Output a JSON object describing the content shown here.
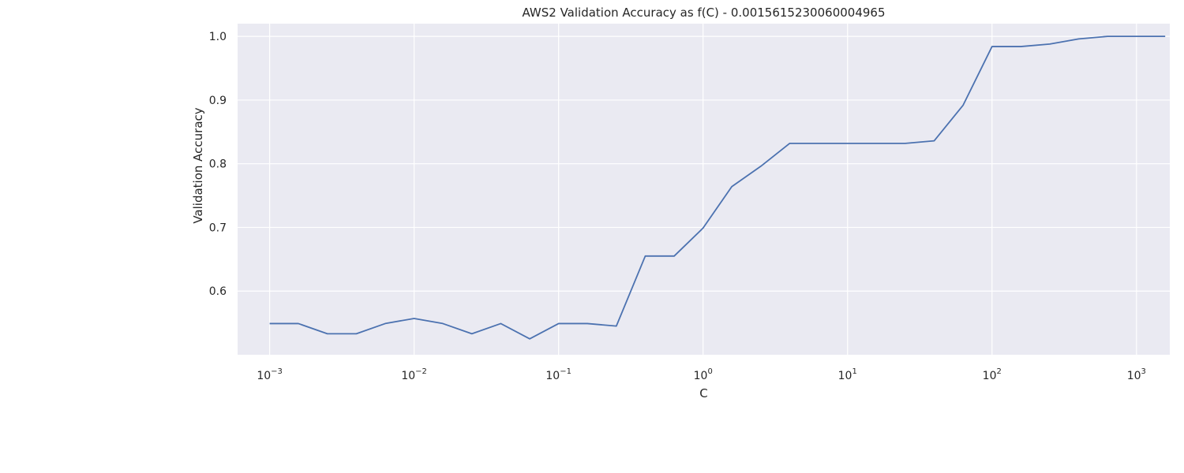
{
  "chart_data": {
    "type": "line",
    "title": "AWS2 Validation Accuracy as f(C) - 0.0015615230060004965",
    "xlabel": "C",
    "ylabel": "Validation Accuracy",
    "xscale": "log",
    "xlim": [
      0.0006,
      1700
    ],
    "ylim": [
      0.5,
      1.02
    ],
    "grid": true,
    "x_ticks": [
      {
        "base": "10",
        "exp": "−3",
        "value": 0.001
      },
      {
        "base": "10",
        "exp": "−2",
        "value": 0.01
      },
      {
        "base": "10",
        "exp": "−1",
        "value": 0.1
      },
      {
        "base": "10",
        "exp": "0",
        "value": 1
      },
      {
        "base": "10",
        "exp": "1",
        "value": 10
      },
      {
        "base": "10",
        "exp": "2",
        "value": 100
      },
      {
        "base": "10",
        "exp": "3",
        "value": 1000
      }
    ],
    "y_ticks": [
      "0.6",
      "0.7",
      "0.8",
      "0.9",
      "1.0"
    ],
    "series": [
      {
        "color": "#4c72b0",
        "points": [
          [
            0.001,
            0.549
          ],
          [
            0.00158,
            0.549
          ],
          [
            0.00251,
            0.533
          ],
          [
            0.00398,
            0.533
          ],
          [
            0.00631,
            0.549
          ],
          [
            0.01,
            0.557
          ],
          [
            0.0158,
            0.549
          ],
          [
            0.0251,
            0.533
          ],
          [
            0.0398,
            0.549
          ],
          [
            0.0631,
            0.525
          ],
          [
            0.1,
            0.549
          ],
          [
            0.158,
            0.549
          ],
          [
            0.251,
            0.545
          ],
          [
            0.398,
            0.655
          ],
          [
            0.631,
            0.655
          ],
          [
            1.0,
            0.699
          ],
          [
            1.58,
            0.764
          ],
          [
            2.51,
            0.796
          ],
          [
            3.98,
            0.832
          ],
          [
            6.31,
            0.832
          ],
          [
            10.0,
            0.832
          ],
          [
            15.8,
            0.832
          ],
          [
            25.1,
            0.832
          ],
          [
            39.8,
            0.836
          ],
          [
            63.1,
            0.892
          ],
          [
            100,
            0.984
          ],
          [
            158,
            0.984
          ],
          [
            251,
            0.988
          ],
          [
            398,
            0.996
          ],
          [
            631,
            1.0
          ],
          [
            1000,
            1.0
          ],
          [
            1580,
            1.0
          ]
        ]
      }
    ],
    "colors": {
      "plot_background": "#eaeaf2",
      "grid": "#ffffff",
      "line": "#4c72b0",
      "text": "#262626"
    }
  }
}
